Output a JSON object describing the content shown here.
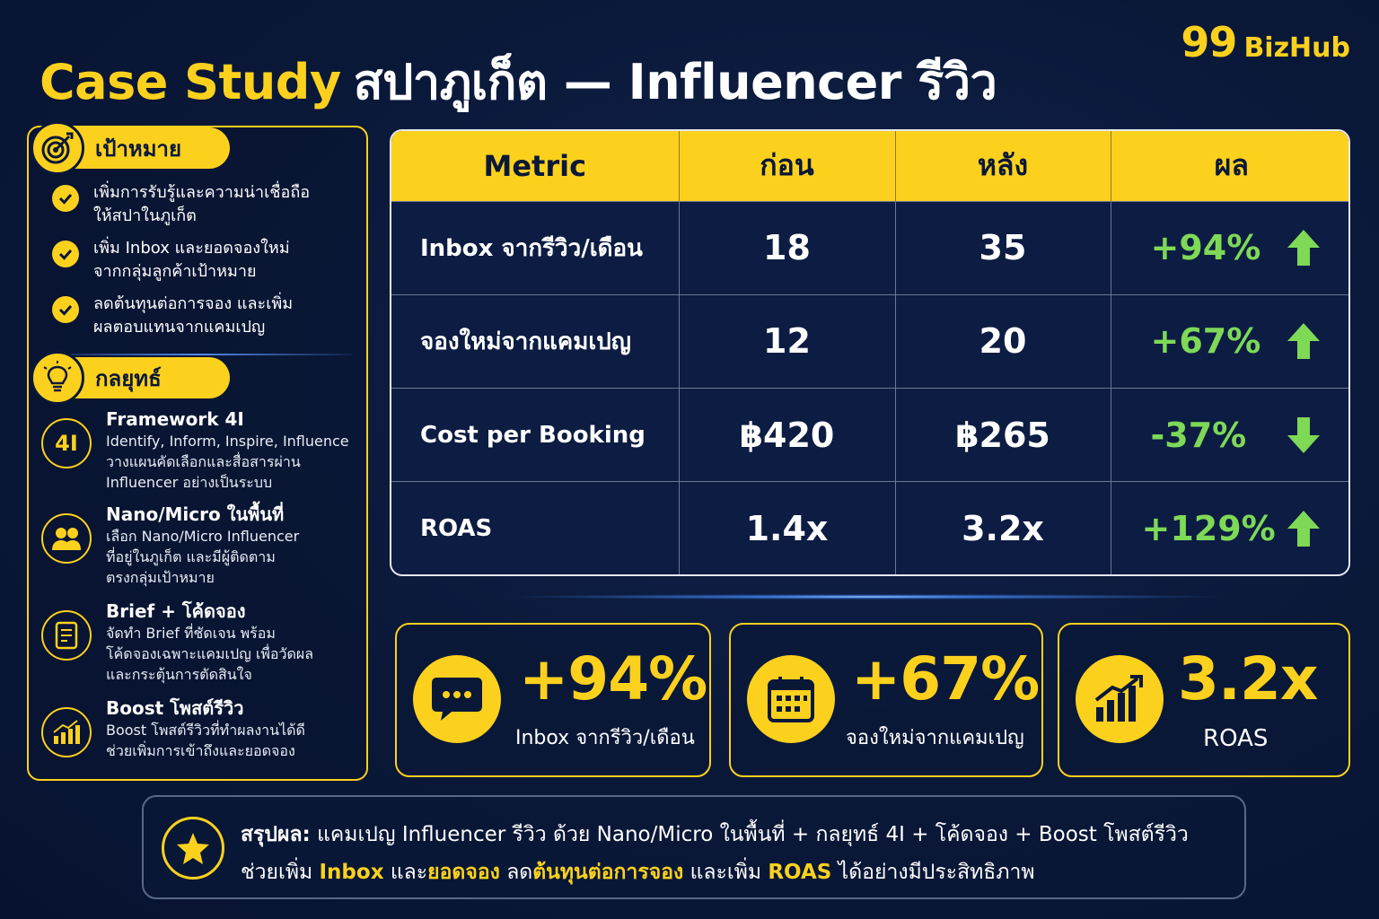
{
  "header": {
    "title_highlight": "Case Study",
    "title_rest": "สปาภูเก็ต — Influencer รีวิว",
    "logo_number": "99",
    "logo_brand": "BizHub"
  },
  "goals": {
    "label": "เป้าหมาย",
    "icon": "target-icon",
    "items": [
      {
        "line1": "เพิ่มการรับรู้และความน่าเชื่อถือ",
        "line2": "ให้สปาในภูเก็ต"
      },
      {
        "line1": "เพิ่ม Inbox และยอดจองใหม่",
        "line2": "จากกลุ่มลูกค้าเป้าหมาย"
      },
      {
        "line1": "ลดต้นทุนต่อการจอง และเพิ่ม",
        "line2": "ผลตอบแทนจากแคมเปญ"
      }
    ]
  },
  "strategy": {
    "label": "กลยุทธ์",
    "icon": "lightbulb-icon",
    "items": [
      {
        "icon": "4I",
        "title": "Framework 4I",
        "desc1": "Identify, Inform, Inspire, Influence",
        "desc2": "วางแผนคัดเลือกและสื่อสารผ่าน",
        "desc3": "Influencer อย่างเป็นระบบ"
      },
      {
        "icon": "users-icon",
        "title": "Nano/Micro ในพื้นที่",
        "desc1": "เลือก Nano/Micro Influencer",
        "desc2": "ที่อยู่ในภูเก็ต และมีผู้ติดตาม",
        "desc3": "ตรงกลุ่มเป้าหมาย"
      },
      {
        "icon": "document-icon",
        "title": "Brief + โค้ดจอง",
        "desc1": "จัดทำ Brief ที่ชัดเจน พร้อม",
        "desc2": "โค้ดจองเฉพาะแคมเปญ เพื่อวัดผล",
        "desc3": "และกระตุ้นการตัดสินใจ"
      },
      {
        "icon": "growth-chart-icon",
        "title": "Boost โพสต์รีวิว",
        "desc1": "Boost โพสต์รีวิวที่ทำผลงานได้ดี",
        "desc2": "ช่วยเพิ่มการเข้าถึงและยอดจอง",
        "desc3": ""
      }
    ]
  },
  "table": {
    "headers": [
      "Metric",
      "ก่อน",
      "หลัง",
      "ผล"
    ],
    "rows": [
      {
        "metric": "Inbox จากรีวิว/เดือน",
        "before": "18",
        "after": "35",
        "result": "+94%",
        "direction": "up"
      },
      {
        "metric": "จองใหม่จากแคมเปญ",
        "before": "12",
        "after": "20",
        "result": "+67%",
        "direction": "up"
      },
      {
        "metric": "Cost per Booking",
        "before": "฿420",
        "after": "฿265",
        "result": "-37%",
        "direction": "down"
      },
      {
        "metric": "ROAS",
        "before": "1.4x",
        "after": "3.2x",
        "result": "+129%",
        "direction": "up"
      }
    ],
    "result_color": "#7ed957"
  },
  "kpis": [
    {
      "icon": "chat-bubble-icon",
      "value": "+94%",
      "label": "Inbox จากรีวิว/เดือน"
    },
    {
      "icon": "calendar-icon",
      "value": "+67%",
      "label": "จองใหม่จากแคมเปญ"
    },
    {
      "icon": "growth-chart-icon",
      "value": "3.2x",
      "label": "ROAS"
    }
  ],
  "summary": {
    "icon": "star-icon",
    "lead": "สรุปผล:",
    "line1_rest": "แคมเปญ Influencer รีวิว ด้วย Nano/Micro ในพื้นที่ + กลยุทธ์ 4I + โค้ดจอง + Boost โพสต์รีวิว",
    "l2_a": "ช่วยเพิ่ม",
    "l2_b": "Inbox",
    "l2_c": "และ",
    "l2_d": "ยอดจอง",
    "l2_e": "ลด",
    "l2_f": "ต้นทุนต่อการจอง",
    "l2_g": "และเพิ่ม",
    "l2_h": "ROAS",
    "l2_i": "ได้อย่างมีประสิทธิภาพ"
  },
  "colors": {
    "accent": "#fcd11e",
    "background": "#0a1838",
    "positive": "#7ed957"
  }
}
